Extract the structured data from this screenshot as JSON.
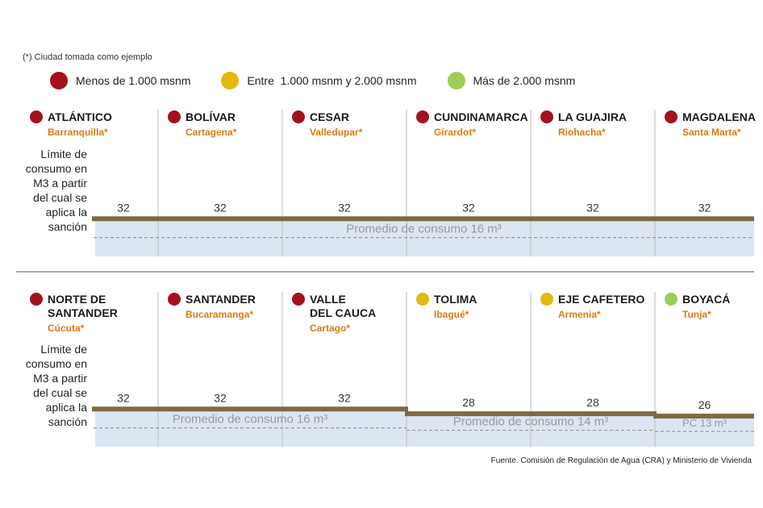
{
  "note": "(*) Ciudad tomada como ejemplo",
  "legend": [
    {
      "label": "Menos de 1.000 msnm",
      "color": "#a3111f"
    },
    {
      "label": "Entre  1.000 msnm y 2.000 msnm",
      "color": "#e3b90c"
    },
    {
      "label": "Más de 2.000 msnm",
      "color": "#9ccc5a"
    }
  ],
  "row_label": [
    "Límite de",
    "consumo en",
    "M3 a partir",
    "del cual se",
    "aplica la",
    "sanción"
  ],
  "source": "Fuente. Comisión de Regulación de Agua (CRA) y Ministerio de Vivienda",
  "colors": {
    "bar": "#7d6a45",
    "fill": "#dce6f3",
    "title": "#1b1b1b",
    "city": "#d67b16",
    "avg": "#999999"
  },
  "chart_data": [
    {
      "type": "bar",
      "categories": [
        "ATLÁNTICO",
        "BOLÍVAR",
        "CESAR",
        "CUNDINAMARCA",
        "LA GUAJIRA",
        "MAGDALENA"
      ],
      "series": [
        {
          "name": "Límite de consumo",
          "values": [
            32,
            32,
            32,
            32,
            32,
            32
          ]
        }
      ],
      "cities": [
        "Barranquilla*",
        "Cartagena*",
        "Valledupar*",
        "Girardot*",
        "Riohacha*",
        "Santa Marta*"
      ],
      "altitude_group": [
        "low",
        "low",
        "low",
        "low",
        "low",
        "low"
      ],
      "averages": [
        {
          "label": "Promedio de consumo 16 m³",
          "value": 16,
          "from": 0,
          "to": 5
        }
      ]
    },
    {
      "type": "bar",
      "categories": [
        "NORTE DE SANTANDER",
        "SANTANDER",
        "VALLE DEL CAUCA",
        "TOLIMA",
        "EJE CAFETERO",
        "BOYACÁ"
      ],
      "series": [
        {
          "name": "Límite de consumo",
          "values": [
            32,
            32,
            32,
            28,
            28,
            26
          ]
        }
      ],
      "cities": [
        "Cúcuta*",
        "Bucaramanga*",
        "Cartago*",
        "Ibagué*",
        "Armenia*",
        "Tunja*"
      ],
      "altitude_group": [
        "low",
        "low",
        "low",
        "mid",
        "mid",
        "high"
      ],
      "averages": [
        {
          "label": "Promedio de consumo 16 m³",
          "value": 16,
          "from": 0,
          "to": 2
        },
        {
          "label": "Promedio de consumo 14 m³",
          "value": 14,
          "from": 3,
          "to": 4
        },
        {
          "label": "PC 13 m³",
          "value": 13,
          "from": 5,
          "to": 5
        }
      ]
    }
  ]
}
